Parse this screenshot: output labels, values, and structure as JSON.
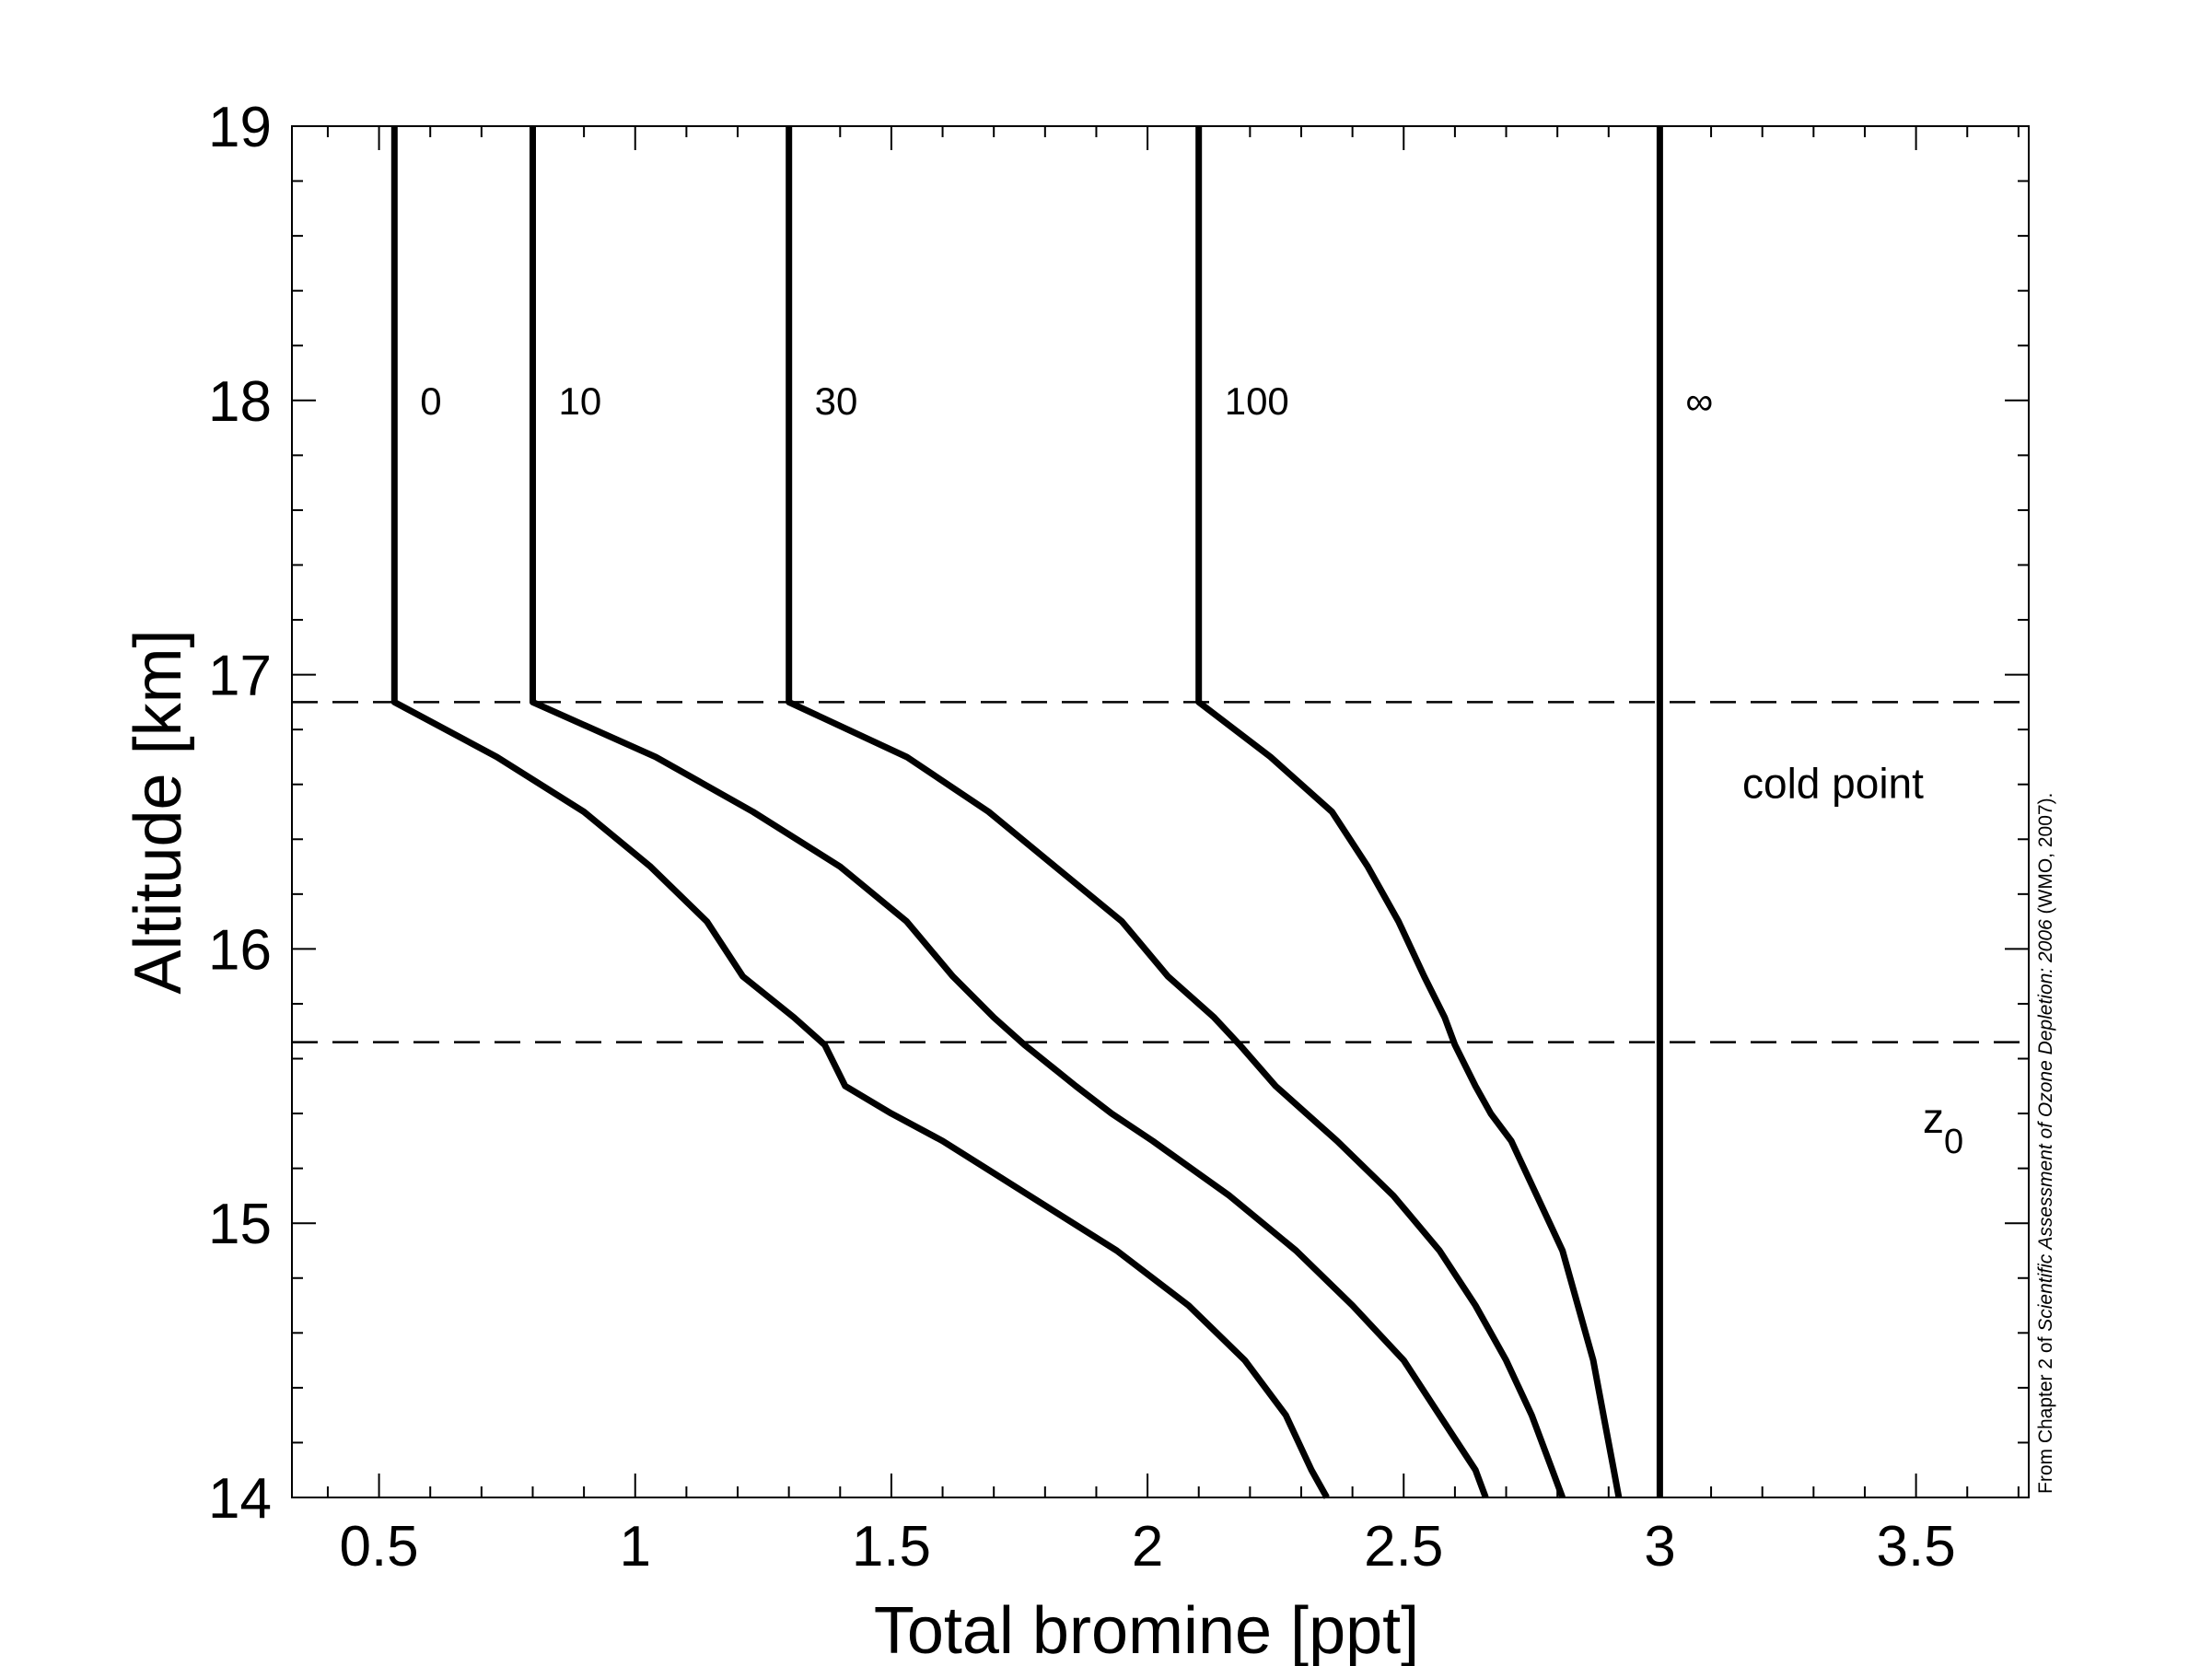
{
  "chart_data": {
    "type": "line",
    "xlabel": "Total bromine [ppt]",
    "ylabel": "Altitude [km]",
    "xlim": [
      0.33,
      3.72
    ],
    "ylim": [
      14,
      19
    ],
    "xticks": [
      0.5,
      1,
      1.5,
      2,
      2.5,
      3,
      3.5
    ],
    "xtick_labels": [
      "0.5",
      "1",
      "1.5",
      "2",
      "2.5",
      "3",
      "3.5"
    ],
    "yticks": [
      14,
      15,
      16,
      17,
      18,
      19
    ],
    "ytick_labels": [
      "14",
      "15",
      "16",
      "17",
      "18",
      "19"
    ],
    "grid": false,
    "series": [
      {
        "name": "0",
        "points": [
          [
            2.35,
            14.0
          ],
          [
            2.32,
            14.1
          ],
          [
            2.27,
            14.3
          ],
          [
            2.19,
            14.5
          ],
          [
            2.08,
            14.7
          ],
          [
            1.94,
            14.9
          ],
          [
            1.77,
            15.1
          ],
          [
            1.6,
            15.3
          ],
          [
            1.5,
            15.4
          ],
          [
            1.41,
            15.5
          ],
          [
            1.37,
            15.65
          ],
          [
            1.31,
            15.75
          ],
          [
            1.21,
            15.9
          ],
          [
            1.14,
            16.1
          ],
          [
            1.03,
            16.3
          ],
          [
            0.9,
            16.5
          ],
          [
            0.73,
            16.7
          ],
          [
            0.53,
            16.9
          ],
          [
            0.53,
            17.2
          ],
          [
            0.53,
            18.0
          ],
          [
            0.53,
            19.0
          ]
        ]
      },
      {
        "name": "10",
        "points": [
          [
            2.66,
            14.0
          ],
          [
            2.64,
            14.1
          ],
          [
            2.57,
            14.3
          ],
          [
            2.5,
            14.5
          ],
          [
            2.4,
            14.7
          ],
          [
            2.29,
            14.9
          ],
          [
            2.16,
            15.1
          ],
          [
            2.01,
            15.3
          ],
          [
            1.93,
            15.4
          ],
          [
            1.86,
            15.5
          ],
          [
            1.76,
            15.65
          ],
          [
            1.7,
            15.75
          ],
          [
            1.62,
            15.9
          ],
          [
            1.53,
            16.1
          ],
          [
            1.4,
            16.3
          ],
          [
            1.23,
            16.5
          ],
          [
            1.04,
            16.7
          ],
          [
            0.8,
            16.9
          ],
          [
            0.8,
            17.2
          ],
          [
            0.8,
            18.0
          ],
          [
            0.8,
            19.0
          ]
        ]
      },
      {
        "name": "30",
        "points": [
          [
            2.81,
            14.0
          ],
          [
            2.79,
            14.1
          ],
          [
            2.75,
            14.3
          ],
          [
            2.7,
            14.5
          ],
          [
            2.64,
            14.7
          ],
          [
            2.57,
            14.9
          ],
          [
            2.48,
            15.1
          ],
          [
            2.37,
            15.3
          ],
          [
            2.31,
            15.4
          ],
          [
            2.25,
            15.5
          ],
          [
            2.18,
            15.65
          ],
          [
            2.13,
            15.75
          ],
          [
            2.04,
            15.9
          ],
          [
            1.95,
            16.1
          ],
          [
            1.82,
            16.3
          ],
          [
            1.69,
            16.5
          ],
          [
            1.53,
            16.7
          ],
          [
            1.3,
            16.9
          ],
          [
            1.3,
            17.2
          ],
          [
            1.3,
            18.0
          ],
          [
            1.3,
            19.0
          ]
        ]
      },
      {
        "name": "100",
        "points": [
          [
            2.92,
            14.0
          ],
          [
            2.91,
            14.1
          ],
          [
            2.89,
            14.3
          ],
          [
            2.87,
            14.5
          ],
          [
            2.84,
            14.7
          ],
          [
            2.81,
            14.9
          ],
          [
            2.76,
            15.1
          ],
          [
            2.71,
            15.3
          ],
          [
            2.67,
            15.4
          ],
          [
            2.64,
            15.5
          ],
          [
            2.6,
            15.65
          ],
          [
            2.58,
            15.75
          ],
          [
            2.54,
            15.9
          ],
          [
            2.49,
            16.1
          ],
          [
            2.43,
            16.3
          ],
          [
            2.36,
            16.5
          ],
          [
            2.24,
            16.7
          ],
          [
            2.1,
            16.9
          ],
          [
            2.1,
            17.2
          ],
          [
            2.1,
            18.0
          ],
          [
            2.1,
            19.0
          ]
        ]
      },
      {
        "name": "∞",
        "points": [
          [
            3.0,
            14.0
          ],
          [
            3.0,
            19.0
          ]
        ]
      }
    ],
    "reference_lines": [
      {
        "y": 16.9,
        "style": "dashed"
      },
      {
        "y": 15.66,
        "style": "dashed"
      }
    ],
    "annotations": {
      "cold_point": "cold point",
      "z0_main": "z",
      "z0_sub": "0"
    },
    "credit_parts": [
      "From Chapter 2 of ",
      "Scientific Assessment of Ozone Depletion: 2006",
      " (WMO, 2007)."
    ]
  }
}
